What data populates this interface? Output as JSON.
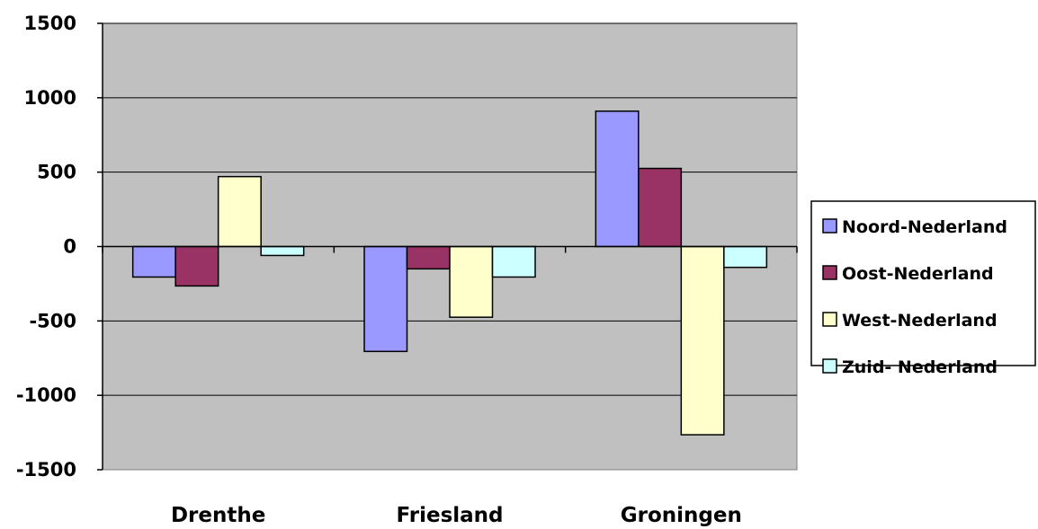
{
  "chart_data": {
    "type": "bar",
    "categories": [
      "Drenthe",
      "Friesland",
      "Groningen"
    ],
    "series": [
      {
        "name": "Noord-Nederland",
        "values": [
          -205,
          -705,
          910
        ],
        "color": "#9999ff"
      },
      {
        "name": "Oost-Nederland",
        "values": [
          -265,
          -150,
          525
        ],
        "color": "#993366"
      },
      {
        "name": "West-Nederland",
        "values": [
          470,
          -475,
          -1265
        ],
        "color": "#ffffcc"
      },
      {
        "name": "Zuid- Nederland",
        "values": [
          -60,
          -205,
          -140
        ],
        "color": "#ccffff"
      }
    ],
    "ylim": [
      -1500,
      1500
    ],
    "yticks": [
      1500,
      1000,
      500,
      0,
      -500,
      -1000,
      -1500
    ],
    "ytick_labels": [
      "1500",
      "1000",
      "500",
      "0",
      "-500",
      "-1000",
      "-1500"
    ],
    "grid": true,
    "plot_background": "#c0c0c0",
    "legend_position": "right",
    "title": "",
    "xlabel": "",
    "ylabel": ""
  }
}
